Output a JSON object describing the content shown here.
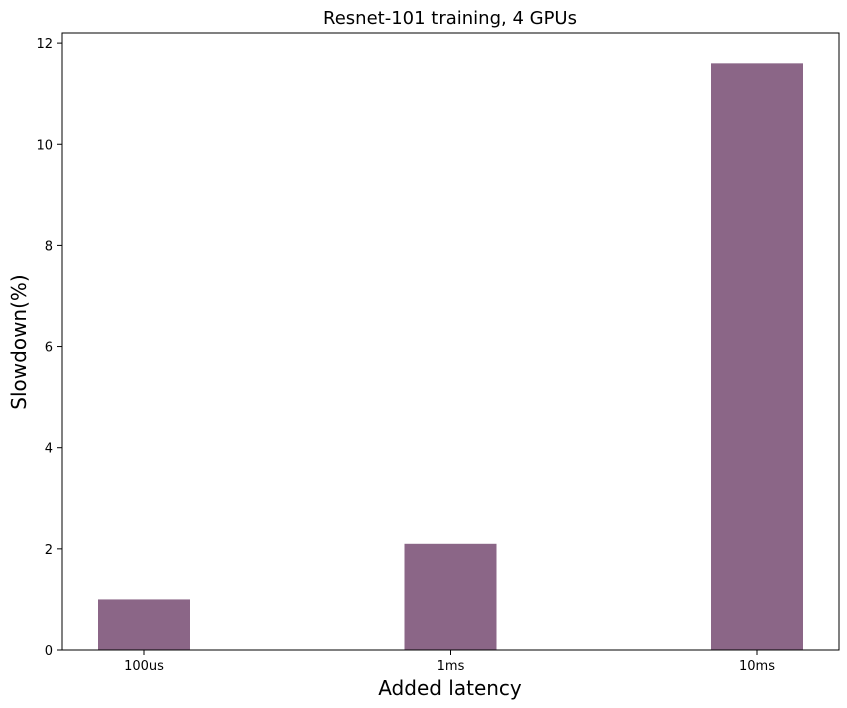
{
  "chart_data": {
    "type": "bar",
    "title": "Resnet-101 training, 4 GPUs",
    "xlabel": "Added latency",
    "ylabel": "Slowdown(%)",
    "categories": [
      "100us",
      "1ms",
      "10ms"
    ],
    "values": [
      1.0,
      2.1,
      11.6
    ],
    "ylim": [
      0,
      12.2
    ],
    "yticks": [
      "0",
      "2",
      "4",
      "6",
      "8",
      "10",
      "12"
    ],
    "bar_color": "#8b6687",
    "grid": false,
    "legend": "none"
  }
}
